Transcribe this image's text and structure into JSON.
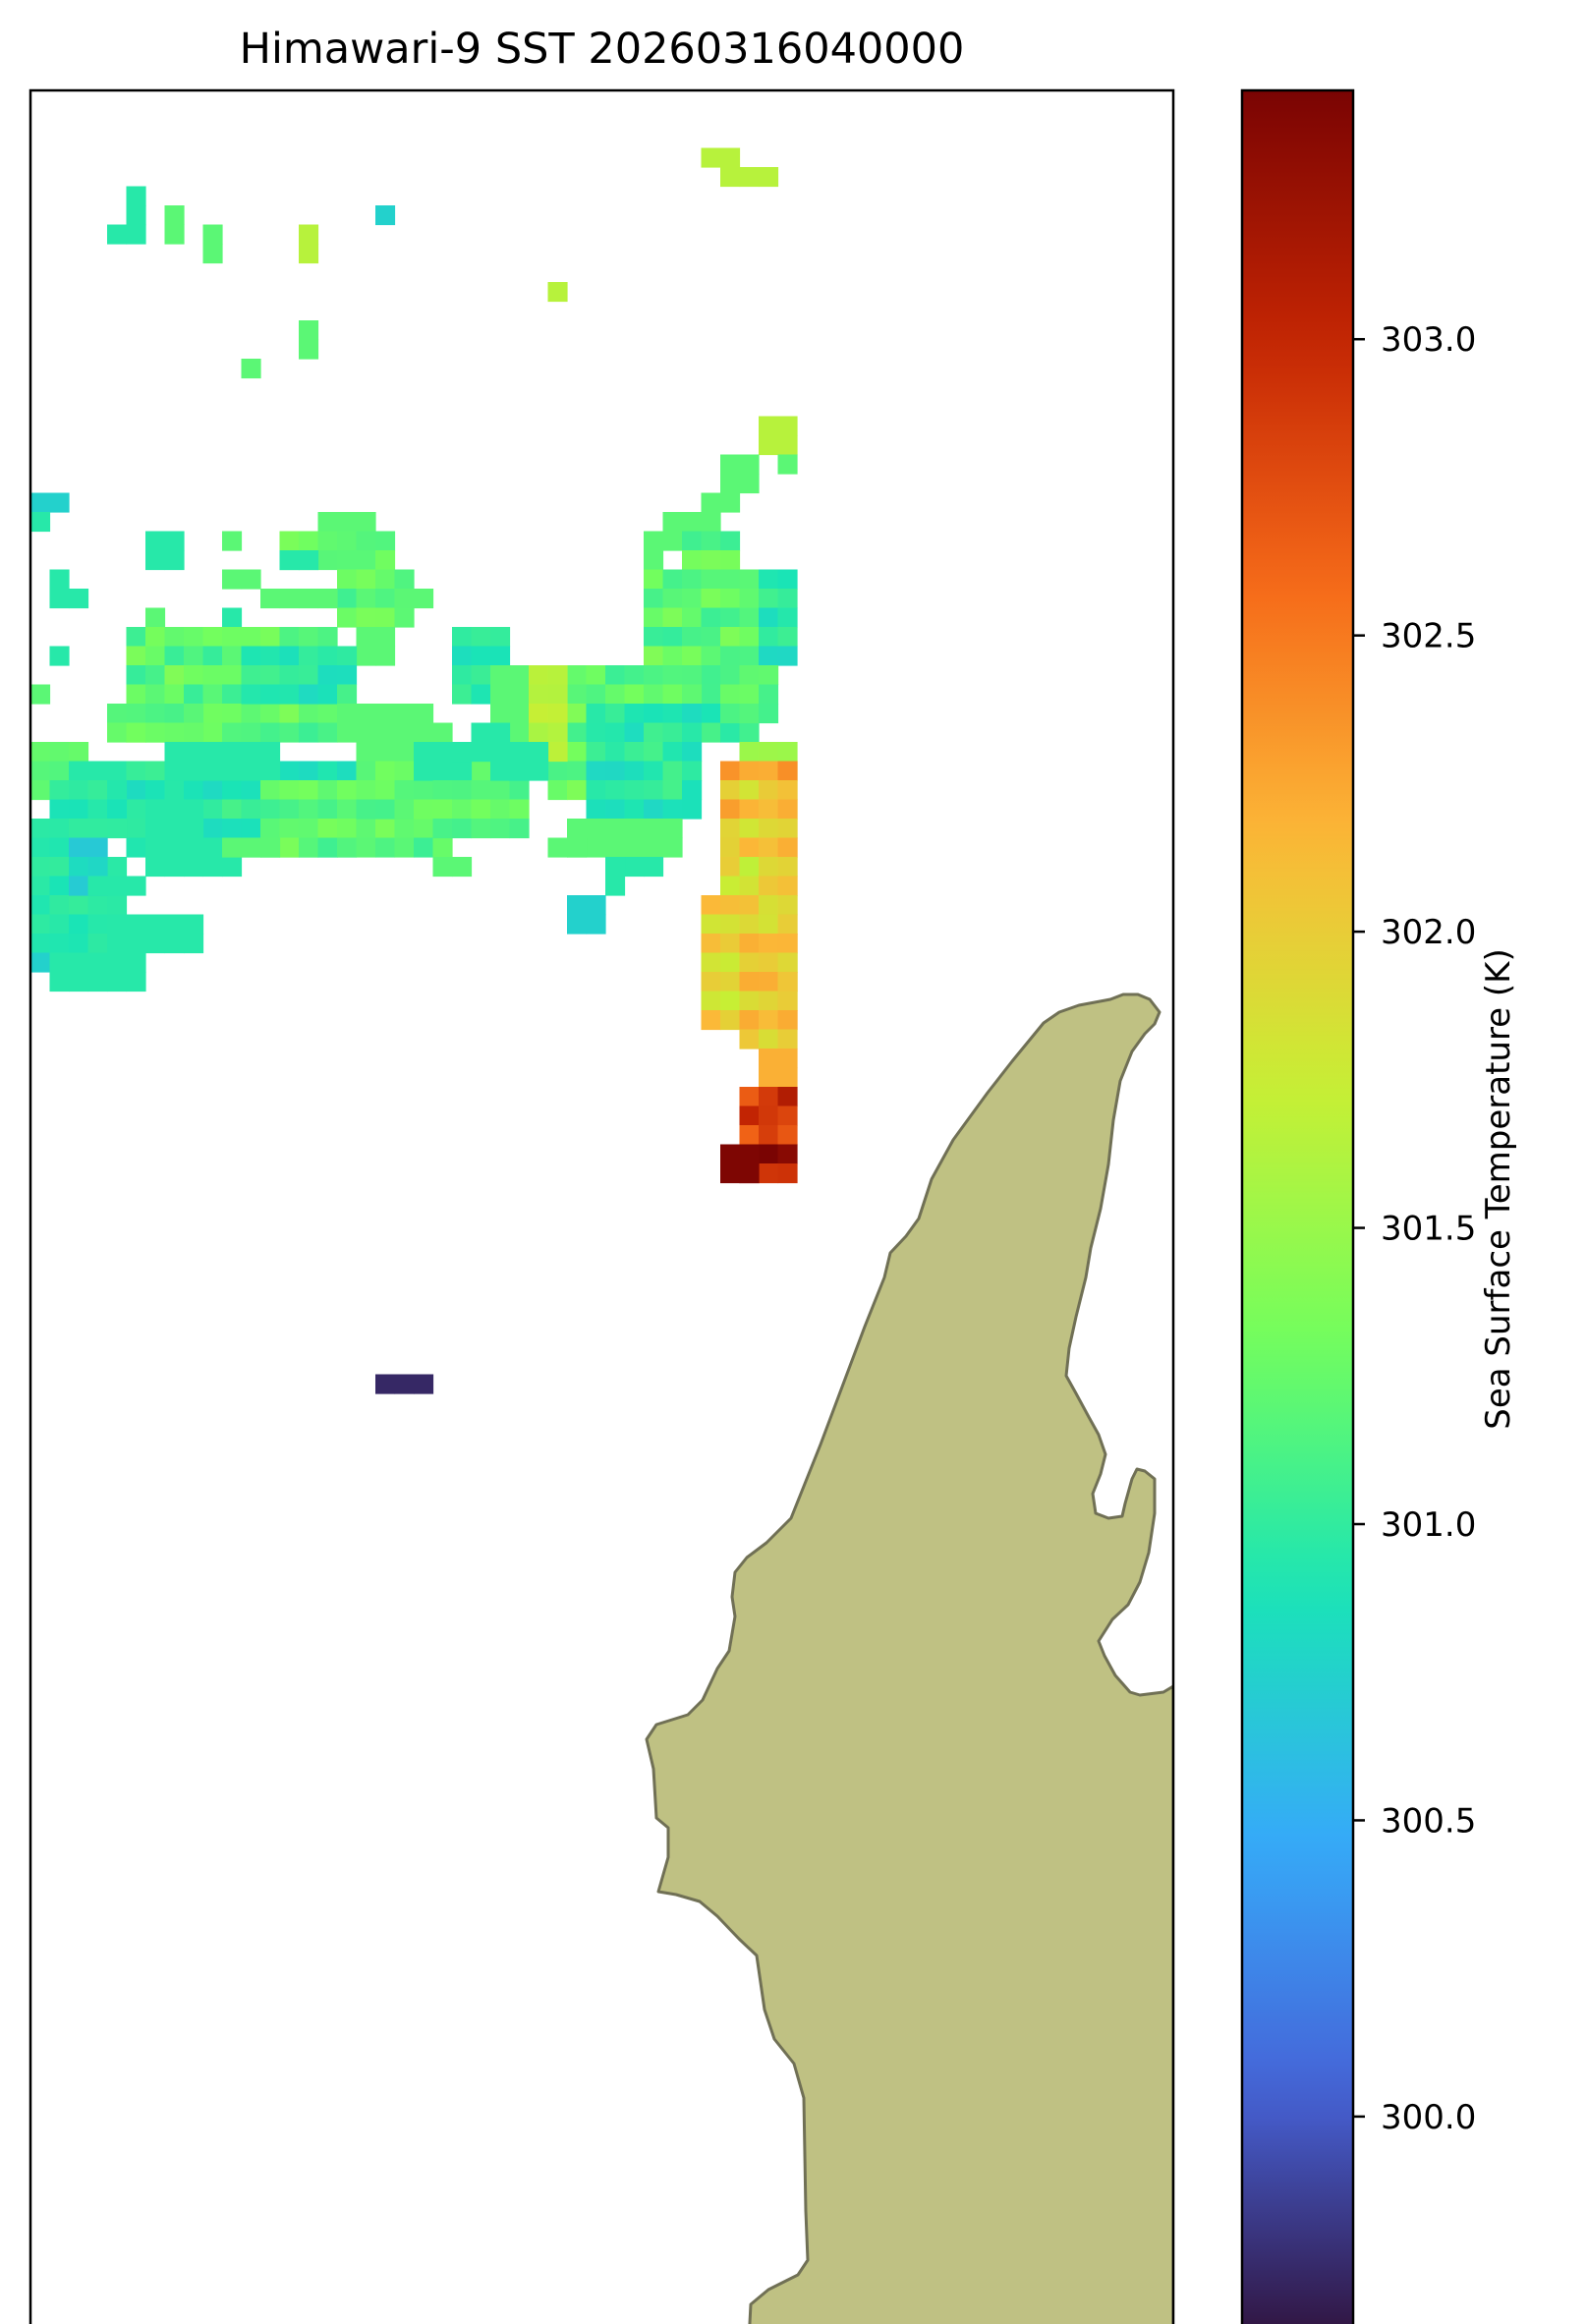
{
  "title": "Himawari-9 SST 20260316040000",
  "colorbar": {
    "label": "Sea Surface Temperature (K)",
    "min": 299.62,
    "max": 303.42,
    "ticks": [
      {
        "value": 300.0,
        "label": "300.0"
      },
      {
        "value": 300.5,
        "label": "300.5"
      },
      {
        "value": 301.0,
        "label": "301.0"
      },
      {
        "value": 301.5,
        "label": "301.5"
      },
      {
        "value": 302.0,
        "label": "302.0"
      },
      {
        "value": 302.5,
        "label": "302.5"
      },
      {
        "value": 303.0,
        "label": "303.0"
      }
    ],
    "colormap": "turbo",
    "stops": [
      "#30123b",
      "#4662d7",
      "#36aaf9",
      "#1ae4b6",
      "#72fe5e",
      "#c7ef34",
      "#fbb938",
      "#f66b19",
      "#c42503",
      "#7a0403"
    ]
  },
  "colors": {
    "land": "#bfc183",
    "coastline": "#707055",
    "frame": "#000000"
  }
}
